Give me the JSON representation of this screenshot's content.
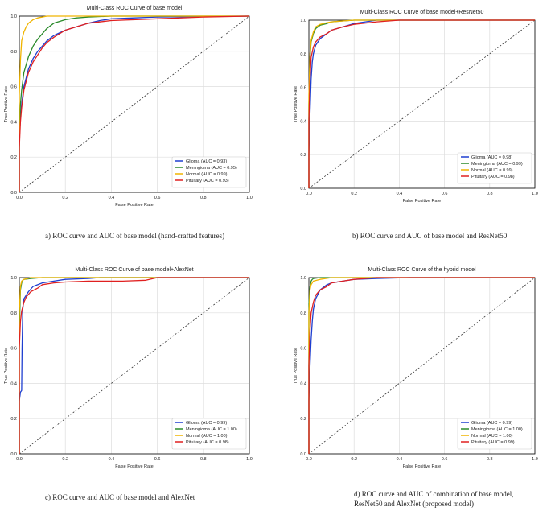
{
  "chart_data": [
    {
      "type": "line",
      "title": "Multi-Class ROC Curve of base model",
      "xlabel": "False Positive Rate",
      "ylabel": "True Positive Rate",
      "xlim": [
        0,
        1
      ],
      "ylim": [
        0,
        1
      ],
      "ticks": [
        "0.0",
        "0.2",
        "0.4",
        "0.6",
        "0.8",
        "1.0"
      ],
      "grid": true,
      "legend": "bottom-right",
      "series": [
        {
          "name": "Glioma (AUC = 0.93)",
          "color": "#1f3fd0",
          "x": [
            0,
            0,
            0.005,
            0.01,
            0.02,
            0.04,
            0.06,
            0.08,
            0.1,
            0.12,
            0.15,
            0.2,
            0.25,
            0.3,
            0.35,
            0.4,
            0.5,
            0.6,
            1.0
          ],
          "y": [
            0,
            0.3,
            0.42,
            0.5,
            0.6,
            0.7,
            0.76,
            0.8,
            0.83,
            0.86,
            0.89,
            0.92,
            0.94,
            0.96,
            0.975,
            0.985,
            0.99,
            0.995,
            1.0
          ]
        },
        {
          "name": "Meningioma (AUC = 0.95)",
          "color": "#2a8a2a",
          "x": [
            0,
            0,
            0.005,
            0.01,
            0.02,
            0.04,
            0.06,
            0.08,
            0.1,
            0.12,
            0.15,
            0.2,
            0.25,
            0.3,
            0.4,
            1.0
          ],
          "y": [
            0,
            0.35,
            0.5,
            0.58,
            0.68,
            0.77,
            0.83,
            0.87,
            0.9,
            0.93,
            0.96,
            0.98,
            0.99,
            0.995,
            1.0,
            1.0
          ]
        },
        {
          "name": "Normal (AUC = 0.99)",
          "color": "#f0b400",
          "x": [
            0,
            0,
            0.005,
            0.01,
            0.02,
            0.03,
            0.04,
            0.06,
            0.08,
            0.1,
            0.12,
            0.15,
            1.0
          ],
          "y": [
            0,
            0.55,
            0.75,
            0.86,
            0.91,
            0.94,
            0.96,
            0.98,
            0.99,
            0.995,
            1.0,
            1.0,
            1.0
          ]
        },
        {
          "name": "Pituitary (AUC = 0.93)",
          "color": "#e02020",
          "x": [
            0,
            0,
            0.005,
            0.01,
            0.02,
            0.04,
            0.06,
            0.08,
            0.1,
            0.12,
            0.15,
            0.2,
            0.25,
            0.3,
            0.4,
            0.6,
            0.8,
            1.0
          ],
          "y": [
            0,
            0.25,
            0.4,
            0.48,
            0.58,
            0.68,
            0.74,
            0.78,
            0.82,
            0.85,
            0.88,
            0.92,
            0.94,
            0.96,
            0.975,
            0.985,
            0.995,
            1.0
          ]
        }
      ]
    },
    {
      "type": "line",
      "title": "Multi-Class ROC Curve of base model+ResNet50",
      "xlabel": "False Positive Rate",
      "ylabel": "True Positive Rate",
      "xlim": [
        0,
        1
      ],
      "ylim": [
        0,
        1
      ],
      "ticks": [
        "0.0",
        "0.2",
        "0.4",
        "0.6",
        "0.8",
        "1.0"
      ],
      "grid": true,
      "legend": "bottom-right",
      "series": [
        {
          "name": "Glioma (AUC = 0.98)",
          "color": "#1f3fd0",
          "x": [
            0,
            0,
            0.005,
            0.01,
            0.015,
            0.02,
            0.03,
            0.05,
            0.08,
            0.1,
            0.15,
            0.2,
            0.25,
            0.3,
            1.0
          ],
          "y": [
            0,
            0.2,
            0.45,
            0.65,
            0.75,
            0.8,
            0.85,
            0.89,
            0.92,
            0.94,
            0.96,
            0.98,
            0.99,
            1.0,
            1.0
          ]
        },
        {
          "name": "Meningioma (AUC = 0.99)",
          "color": "#2a8a2a",
          "x": [
            0,
            0,
            0.005,
            0.01,
            0.02,
            0.03,
            0.05,
            0.08,
            0.1,
            0.15,
            0.2,
            1.0
          ],
          "y": [
            0,
            0.5,
            0.78,
            0.87,
            0.92,
            0.95,
            0.97,
            0.98,
            0.99,
            0.995,
            1.0,
            1.0
          ]
        },
        {
          "name": "Normal (AUC = 0.99)",
          "color": "#f0b400",
          "x": [
            0,
            0,
            0.005,
            0.01,
            0.02,
            0.03,
            0.05,
            0.08,
            0.1,
            0.15,
            0.2,
            1.0
          ],
          "y": [
            0,
            0.55,
            0.8,
            0.88,
            0.93,
            0.96,
            0.975,
            0.985,
            0.99,
            0.995,
            1.0,
            1.0
          ]
        },
        {
          "name": "Pituitary (AUC = 0.98)",
          "color": "#e02020",
          "x": [
            0,
            0,
            0.005,
            0.01,
            0.02,
            0.03,
            0.05,
            0.08,
            0.1,
            0.15,
            0.2,
            0.3,
            0.4,
            1.0
          ],
          "y": [
            0,
            0.4,
            0.65,
            0.78,
            0.84,
            0.87,
            0.9,
            0.92,
            0.94,
            0.96,
            0.975,
            0.99,
            1.0,
            1.0
          ]
        }
      ]
    },
    {
      "type": "line",
      "title": "Multi-Class ROC Curve of base model+AlexNet",
      "xlabel": "False Positive Rate",
      "ylabel": "True Positive Rate",
      "xlim": [
        0,
        1
      ],
      "ylim": [
        0,
        1
      ],
      "ticks": [
        "0.0",
        "0.2",
        "0.4",
        "0.6",
        "0.8",
        "1.0"
      ],
      "grid": true,
      "legend": "bottom-right",
      "series": [
        {
          "name": "Glioma (AUC = 0.99)",
          "color": "#1f3fd0",
          "x": [
            0,
            0,
            0.005,
            0.01,
            0.012,
            0.015,
            0.02,
            0.04,
            0.06,
            0.1,
            0.15,
            0.2,
            0.3,
            0.35,
            1.0
          ],
          "y": [
            0,
            0.3,
            0.35,
            0.36,
            0.6,
            0.82,
            0.88,
            0.92,
            0.95,
            0.97,
            0.98,
            0.99,
            0.995,
            1.0,
            1.0
          ]
        },
        {
          "name": "Meningioma (AUC = 1.00)",
          "color": "#2a8a2a",
          "x": [
            0,
            0,
            0.005,
            0.01,
            0.015,
            0.02,
            0.05,
            0.1,
            1.0
          ],
          "y": [
            0,
            0.7,
            0.93,
            0.97,
            0.985,
            0.99,
            0.995,
            1.0,
            1.0
          ]
        },
        {
          "name": "Normal (AUC = 1.00)",
          "color": "#f0b400",
          "x": [
            0,
            0,
            0.005,
            0.01,
            0.02,
            0.05,
            1.0
          ],
          "y": [
            0,
            0.8,
            0.95,
            0.98,
            0.99,
            1.0,
            1.0
          ]
        },
        {
          "name": "Pituitary (AUC = 0.98)",
          "color": "#e02020",
          "x": [
            0,
            0,
            0.005,
            0.01,
            0.02,
            0.03,
            0.05,
            0.08,
            0.1,
            0.15,
            0.2,
            0.3,
            0.45,
            0.55,
            0.6,
            1.0
          ],
          "y": [
            0,
            0.6,
            0.75,
            0.81,
            0.86,
            0.89,
            0.92,
            0.94,
            0.96,
            0.97,
            0.975,
            0.98,
            0.98,
            0.985,
            1.0,
            1.0
          ]
        }
      ]
    },
    {
      "type": "line",
      "title": "Multi-Class ROC Curve of the hybrid model",
      "xlabel": "False Positive Rate",
      "ylabel": "True Positive Rate",
      "xlim": [
        0,
        1
      ],
      "ylim": [
        0,
        1
      ],
      "ticks": [
        "0.0",
        "0.2",
        "0.4",
        "0.6",
        "0.8",
        "1.0"
      ],
      "grid": true,
      "legend": "bottom-right",
      "series": [
        {
          "name": "Glioma (AUC = 0.99)",
          "color": "#1f3fd0",
          "x": [
            0,
            0,
            0.005,
            0.01,
            0.015,
            0.02,
            0.03,
            0.05,
            0.08,
            0.1,
            0.15,
            0.2,
            0.3,
            0.45,
            1.0
          ],
          "y": [
            0,
            0.3,
            0.5,
            0.65,
            0.75,
            0.82,
            0.88,
            0.93,
            0.96,
            0.97,
            0.98,
            0.99,
            0.995,
            1.0,
            1.0
          ]
        },
        {
          "name": "Meningioma (AUC = 1.00)",
          "color": "#2a8a2a",
          "x": [
            0,
            0,
            0.005,
            0.01,
            0.015,
            0.02,
            0.05,
            0.1,
            1.0
          ],
          "y": [
            0,
            0.85,
            0.95,
            0.98,
            0.99,
            0.995,
            1.0,
            1.0,
            1.0
          ]
        },
        {
          "name": "Normal (AUC = 1.00)",
          "color": "#f0b400",
          "x": [
            0,
            0,
            0.005,
            0.01,
            0.02,
            0.05,
            0.1,
            1.0
          ],
          "y": [
            0,
            0.8,
            0.93,
            0.96,
            0.98,
            0.99,
            1.0,
            1.0
          ]
        },
        {
          "name": "Pituitary (AUC = 0.99)",
          "color": "#e02020",
          "x": [
            0,
            0,
            0.005,
            0.01,
            0.02,
            0.03,
            0.05,
            0.08,
            0.1,
            0.15,
            0.2,
            0.3,
            1.0
          ],
          "y": [
            0,
            0.5,
            0.7,
            0.8,
            0.86,
            0.9,
            0.93,
            0.95,
            0.97,
            0.98,
            0.99,
            1.0,
            1.0
          ]
        }
      ]
    }
  ],
  "captions": {
    "a": "a) ROC curve and AUC of base model (hand-crafted features)",
    "b": "b) ROC curve and AUC of base model and ResNet50",
    "c": "c) ROC curve and AUC of base model and AlexNet",
    "d": "d) ROC curve and AUC of combination of base model, ResNet50 and AlexNet (proposed model)"
  },
  "colors": {
    "diagonal": "#333333",
    "grid": "#dddddd",
    "axis": "#000000"
  }
}
